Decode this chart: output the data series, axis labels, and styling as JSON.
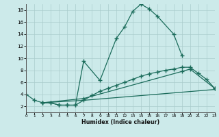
{
  "bg_color": "#cceaea",
  "grid_color": "#aacccc",
  "line_color": "#1a6b5a",
  "xlabel": "Humidex (Indice chaleur)",
  "xlim": [
    0,
    23
  ],
  "ylim": [
    1,
    19
  ],
  "xticks": [
    0,
    1,
    2,
    3,
    4,
    5,
    6,
    7,
    8,
    9,
    10,
    11,
    12,
    13,
    14,
    15,
    16,
    17,
    18,
    19,
    20,
    21,
    22,
    23
  ],
  "yticks": [
    2,
    4,
    6,
    8,
    10,
    12,
    14,
    16,
    18
  ],
  "curve1_x": [
    0,
    1,
    2,
    3,
    4,
    5,
    6,
    7,
    9,
    11,
    12,
    13,
    14,
    15,
    16,
    18,
    19
  ],
  "curve1_y": [
    4,
    3,
    2.6,
    2.6,
    2.2,
    2.2,
    2.2,
    9.5,
    6.3,
    13.3,
    15.2,
    17.8,
    19.0,
    18.2,
    17.0,
    14.0,
    10.5
  ],
  "curve2_x": [
    2,
    3,
    4,
    5,
    6,
    7,
    8,
    9,
    10,
    11,
    12,
    13,
    14,
    15,
    16,
    17,
    18,
    19,
    20,
    21,
    22,
    23
  ],
  "curve2_y": [
    2.6,
    2.6,
    2.2,
    2.2,
    2.2,
    3.0,
    3.8,
    4.5,
    5.0,
    5.5,
    6.0,
    6.5,
    7.0,
    7.4,
    7.7,
    8.0,
    8.2,
    8.5,
    8.5,
    7.5,
    6.5,
    5.0
  ],
  "line3_x": [
    2,
    7,
    19,
    20,
    23
  ],
  "line3_y": [
    2.6,
    3.3,
    7.8,
    8.2,
    5.0
  ],
  "line4_x": [
    2,
    7,
    23
  ],
  "line4_y": [
    2.6,
    3.0,
    4.8
  ]
}
